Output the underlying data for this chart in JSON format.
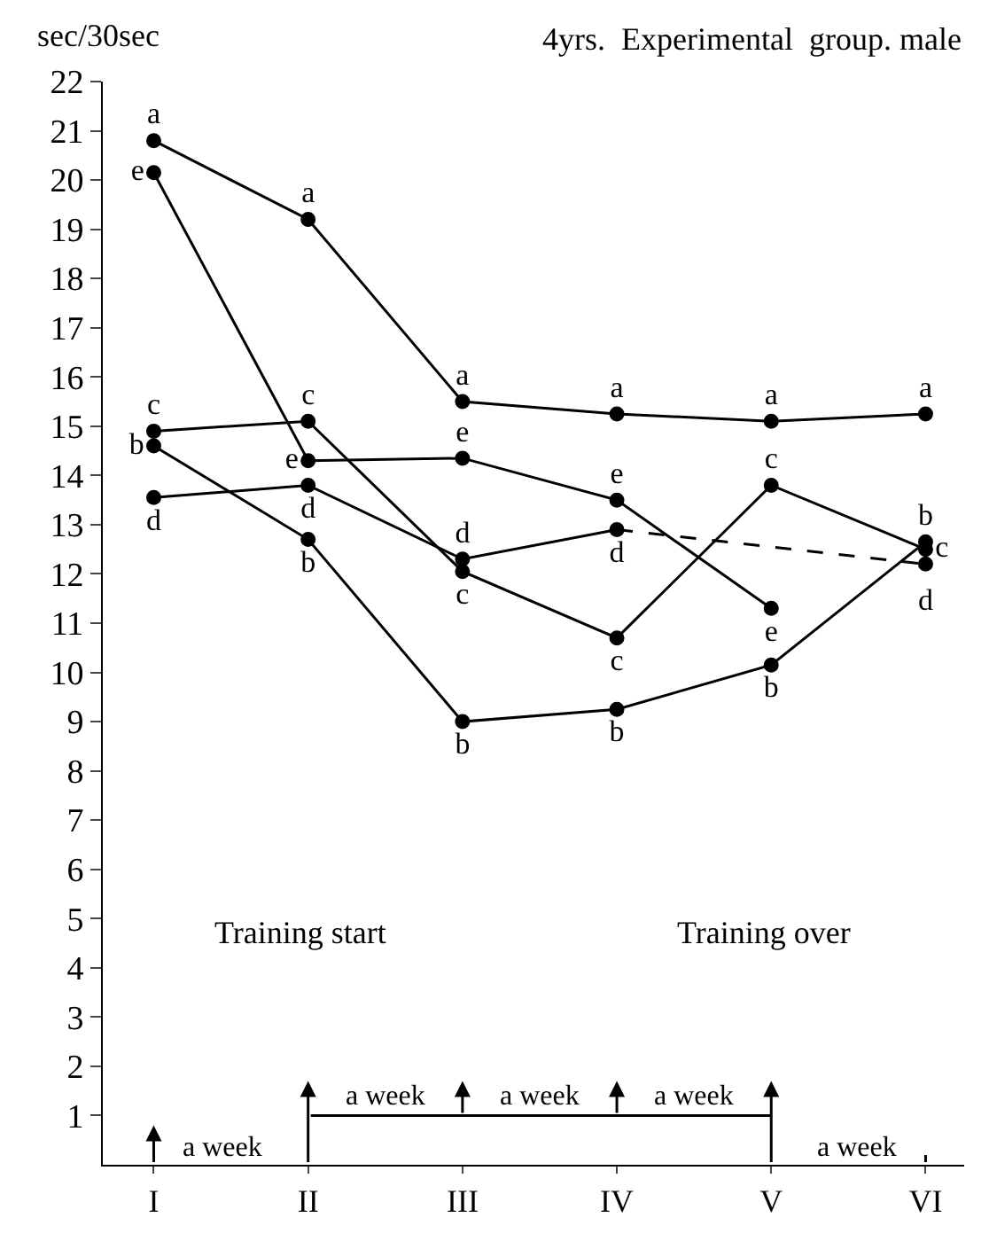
{
  "chart_data": {
    "type": "line",
    "title": "4yrs.  Experimental  group. male",
    "ylabel": "sec/30sec",
    "categories": [
      "I",
      "II",
      "III",
      "IV",
      "V",
      "VI"
    ],
    "ylim": [
      0,
      22
    ],
    "yticks": [
      1,
      2,
      3,
      4,
      5,
      6,
      7,
      8,
      9,
      10,
      11,
      12,
      13,
      14,
      15,
      16,
      17,
      18,
      19,
      20,
      21,
      22
    ],
    "legend": false,
    "marker": "circle",
    "series": [
      {
        "name": "a",
        "color": "#000000",
        "values": [
          20.8,
          19.2,
          15.5,
          15.25,
          15.1,
          15.25
        ]
      },
      {
        "name": "e",
        "color": "#000000",
        "values": [
          20.15,
          14.3,
          14.35,
          13.5,
          11.3,
          null
        ]
      },
      {
        "name": "c",
        "color": "#000000",
        "values": [
          14.9,
          15.1,
          12.05,
          10.7,
          13.8,
          12.5
        ]
      },
      {
        "name": "b",
        "color": "#000000",
        "values": [
          14.6,
          12.7,
          9.0,
          9.25,
          10.15,
          12.65
        ]
      },
      {
        "name": "d",
        "color": "#000000",
        "values": [
          13.55,
          13.8,
          12.3,
          12.9,
          null,
          null
        ]
      },
      {
        "color": "#000000",
        "line_style": "dashed",
        "marker": "none",
        "values": [
          null,
          null,
          null,
          12.9,
          12.55,
          12.2
        ]
      },
      {
        "color": "#000000",
        "marker": "circle",
        "line_style": "none",
        "values": [
          null,
          null,
          null,
          null,
          null,
          12.2
        ]
      }
    ],
    "annotations": [
      "Training start",
      "Training over",
      "a week",
      "a week",
      "a week",
      "a week",
      "a week"
    ]
  }
}
